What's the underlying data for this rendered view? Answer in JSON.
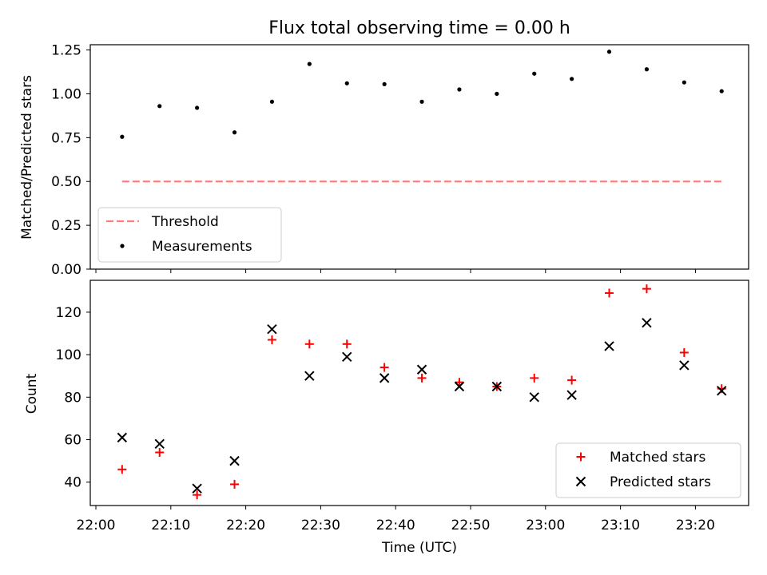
{
  "title": "Flux total observing time = 0.00 h",
  "x_label": "Time (UTC)",
  "x_ticks": [
    "22:00",
    "22:10",
    "22:20",
    "22:30",
    "22:40",
    "22:50",
    "23:00",
    "23:10",
    "23:20"
  ],
  "colors": {
    "threshold": "#ff7f7f",
    "measurements": "#000000",
    "matched": "#ff0000",
    "predicted": "#000000"
  },
  "chart_data": [
    {
      "type": "scatter",
      "ylabel": "Matched/Predicted stars",
      "ylim": [
        0.0,
        1.28
      ],
      "y_ticks": [
        "0.00",
        "0.25",
        "0.50",
        "0.75",
        "1.00",
        "1.25"
      ],
      "legend_position": "lower-left",
      "x": [
        "22:03:30",
        "22:08:30",
        "22:13:30",
        "22:18:30",
        "22:23:30",
        "22:28:30",
        "22:33:30",
        "22:38:30",
        "22:43:30",
        "22:48:30",
        "22:53:30",
        "22:58:30",
        "23:03:30",
        "23:08:30",
        "23:13:30",
        "23:18:30",
        "23:23:30"
      ],
      "series": [
        {
          "name": "Threshold",
          "style": "dashed-line",
          "x_range": [
            "22:03:30",
            "23:23:30"
          ],
          "values": [
            0.5,
            0.5
          ]
        },
        {
          "name": "Measurements",
          "style": "dots",
          "values": [
            0.755,
            0.93,
            0.92,
            0.78,
            0.955,
            1.17,
            1.06,
            1.055,
            0.955,
            1.025,
            1.0,
            1.115,
            1.085,
            1.24,
            1.14,
            1.065,
            1.015
          ]
        }
      ]
    },
    {
      "type": "scatter",
      "ylabel": "Count",
      "ylim": [
        29,
        135
      ],
      "y_ticks": [
        "40",
        "60",
        "80",
        "100",
        "120"
      ],
      "legend_position": "lower-right",
      "x": [
        "22:03:30",
        "22:08:30",
        "22:13:30",
        "22:18:30",
        "22:23:30",
        "22:28:30",
        "22:33:30",
        "22:38:30",
        "22:43:30",
        "22:48:30",
        "22:53:30",
        "22:58:30",
        "23:03:30",
        "23:08:30",
        "23:13:30",
        "23:18:30",
        "23:23:30"
      ],
      "series": [
        {
          "name": "Matched stars",
          "marker": "+",
          "values": [
            46,
            54,
            34,
            39,
            107,
            105,
            105,
            94,
            89,
            87,
            85,
            89,
            88,
            129,
            131,
            101,
            84
          ]
        },
        {
          "name": "Predicted stars",
          "marker": "x",
          "values": [
            61,
            58,
            37,
            50,
            112,
            90,
            99,
            89,
            93,
            85,
            85,
            80,
            81,
            104,
            115,
            95,
            83
          ]
        }
      ]
    }
  ]
}
